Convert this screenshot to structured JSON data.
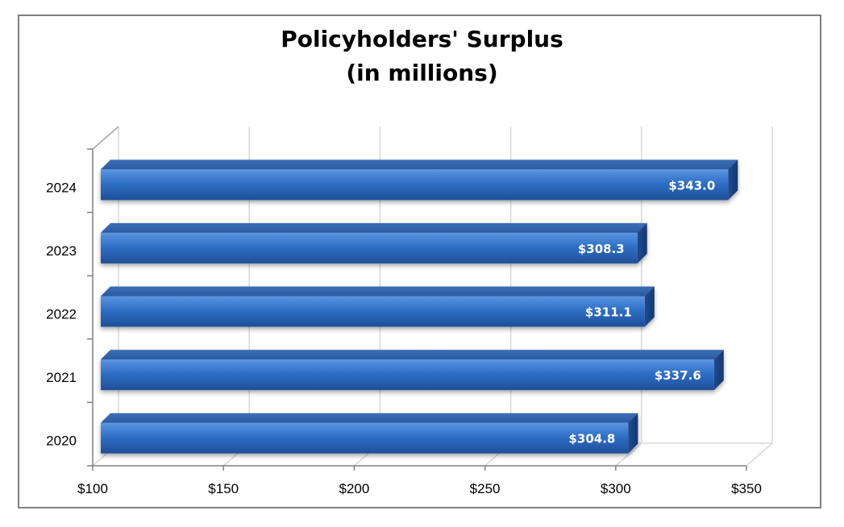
{
  "chart_data": {
    "type": "bar",
    "orientation": "horizontal",
    "title": "Policyholders' Surplus",
    "subtitle": "(in millions)",
    "categories": [
      "2020",
      "2021",
      "2022",
      "2023",
      "2024"
    ],
    "values": [
      304.8,
      337.6,
      311.1,
      308.3,
      343.0
    ],
    "data_labels": [
      "$304.8",
      "$337.6",
      "$311.1",
      "$308.3",
      "$343.0"
    ],
    "x_ticks": [
      100,
      150,
      200,
      250,
      300,
      350
    ],
    "x_tick_labels": [
      "$100",
      "$150",
      "$200",
      "$250",
      "$300",
      "$350"
    ],
    "xlim": [
      100,
      350
    ],
    "grid": true,
    "legend": "none",
    "bar_color": "#2e6fc4"
  }
}
